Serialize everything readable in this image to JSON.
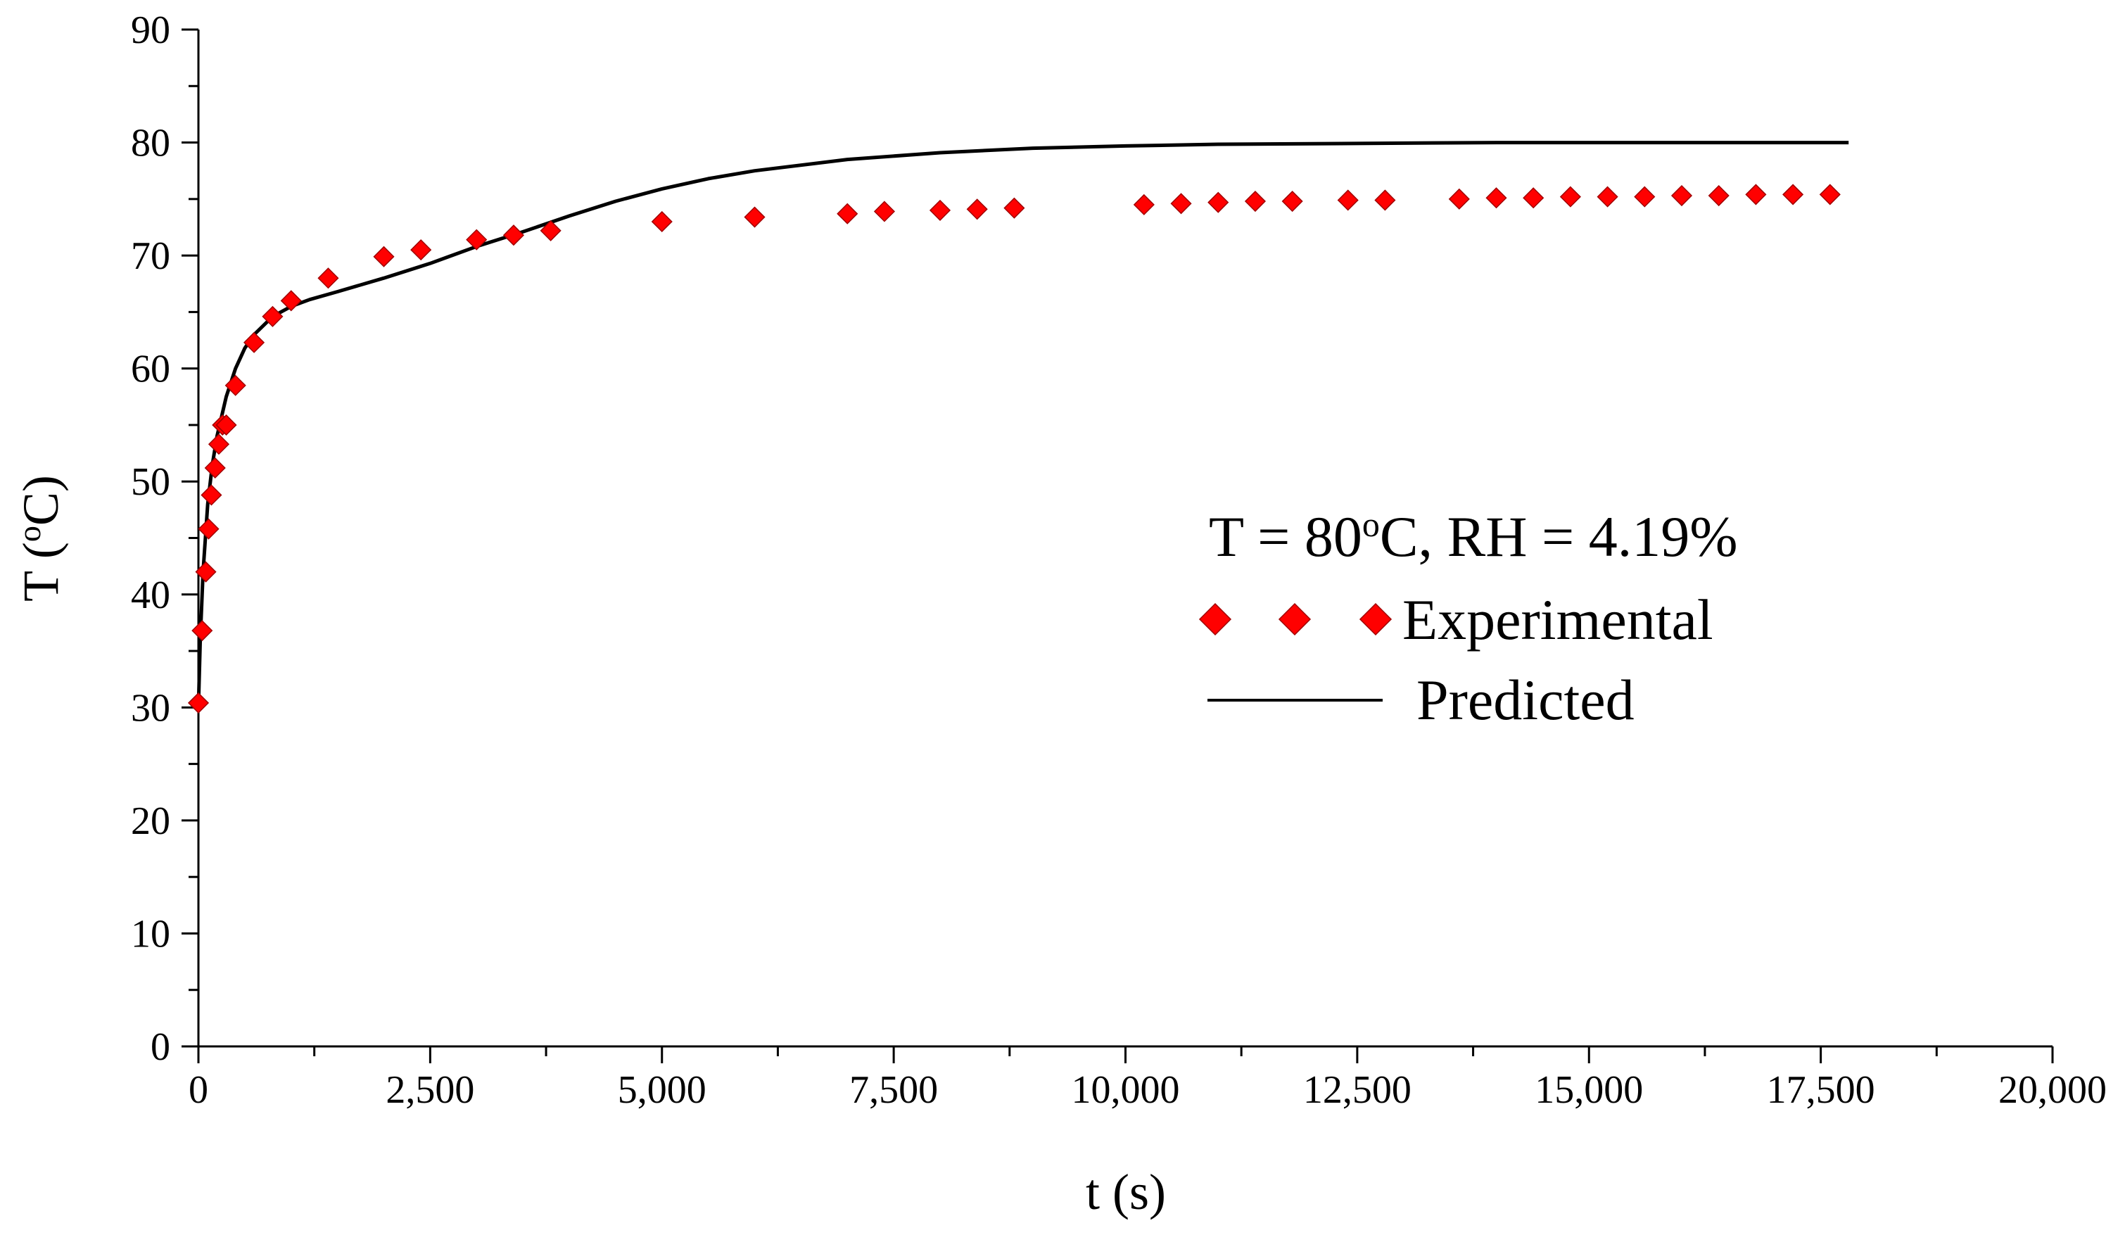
{
  "chart_data": {
    "type": "scatter",
    "title": "",
    "xlabel": "t (s)",
    "ylabel_main": "T (",
    "ylabel_sup": "o",
    "ylabel_unit": "C)",
    "xlim": [
      0,
      20000
    ],
    "ylim": [
      0,
      90
    ],
    "x_ticks": [
      0,
      2500,
      5000,
      7500,
      10000,
      12500,
      15000,
      17500,
      20000
    ],
    "x_tick_labels": [
      "0",
      "2,500",
      "5,000",
      "7,500",
      "10,000",
      "12,500",
      "15,000",
      "17,500",
      "20,000"
    ],
    "y_ticks": [
      0,
      10,
      20,
      30,
      40,
      50,
      60,
      70,
      80,
      90
    ],
    "y_tick_labels": [
      "0",
      "10",
      "20",
      "30",
      "40",
      "50",
      "60",
      "70",
      "80",
      "90"
    ],
    "grid": false,
    "legend_position": "right-center",
    "annotation": {
      "prefix": "T = 80",
      "sup": "o",
      "suffix": "C,   RH = 4.19%"
    },
    "series": [
      {
        "name": "Experimental",
        "kind": "markers",
        "marker": "diamond",
        "color": "#ff0000",
        "x": [
          0,
          40,
          80,
          110,
          140,
          180,
          220,
          260,
          300,
          400,
          600,
          800,
          1000,
          1400,
          2000,
          2400,
          3000,
          3400,
          3800,
          5000,
          6000,
          7000,
          7400,
          8000,
          8400,
          8800,
          10200,
          10600,
          11000,
          11400,
          11800,
          12400,
          12800,
          13600,
          14000,
          14400,
          14800,
          15200,
          15600,
          16000,
          16400,
          16800,
          17200,
          17600
        ],
        "y": [
          30.4,
          36.8,
          42.0,
          45.8,
          48.8,
          51.2,
          53.3,
          55.0,
          55.0,
          58.5,
          62.3,
          64.6,
          66.0,
          68.0,
          69.9,
          70.5,
          71.4,
          71.8,
          72.2,
          73.0,
          73.4,
          73.7,
          73.9,
          74.0,
          74.1,
          74.2,
          74.5,
          74.6,
          74.7,
          74.8,
          74.8,
          74.9,
          74.9,
          75.0,
          75.1,
          75.1,
          75.2,
          75.2,
          75.2,
          75.3,
          75.3,
          75.4,
          75.4,
          75.4
        ]
      },
      {
        "name": "Predicted",
        "kind": "line",
        "color": "#000000",
        "x": [
          0,
          20,
          50,
          100,
          150,
          200,
          300,
          400,
          500,
          600,
          800,
          1000,
          1200,
          1500,
          2000,
          2500,
          3000,
          3500,
          4000,
          4500,
          5000,
          5500,
          6000,
          7000,
          8000,
          9000,
          10000,
          11000,
          12000,
          13000,
          14000,
          15000,
          16000,
          17000,
          17800
        ],
        "y": [
          30.0,
          36.0,
          42.0,
          48.0,
          51.5,
          54.0,
          57.5,
          60.0,
          61.8,
          63.0,
          64.6,
          65.5,
          66.1,
          66.8,
          68.0,
          69.3,
          70.8,
          72.1,
          73.5,
          74.8,
          75.9,
          76.8,
          77.5,
          78.5,
          79.1,
          79.5,
          79.7,
          79.85,
          79.9,
          79.95,
          80.0,
          80.0,
          80.0,
          80.0,
          80.0
        ]
      }
    ]
  },
  "colors": {
    "axis": "#000000",
    "experimental": "#ff0000",
    "predicted": "#000000"
  }
}
